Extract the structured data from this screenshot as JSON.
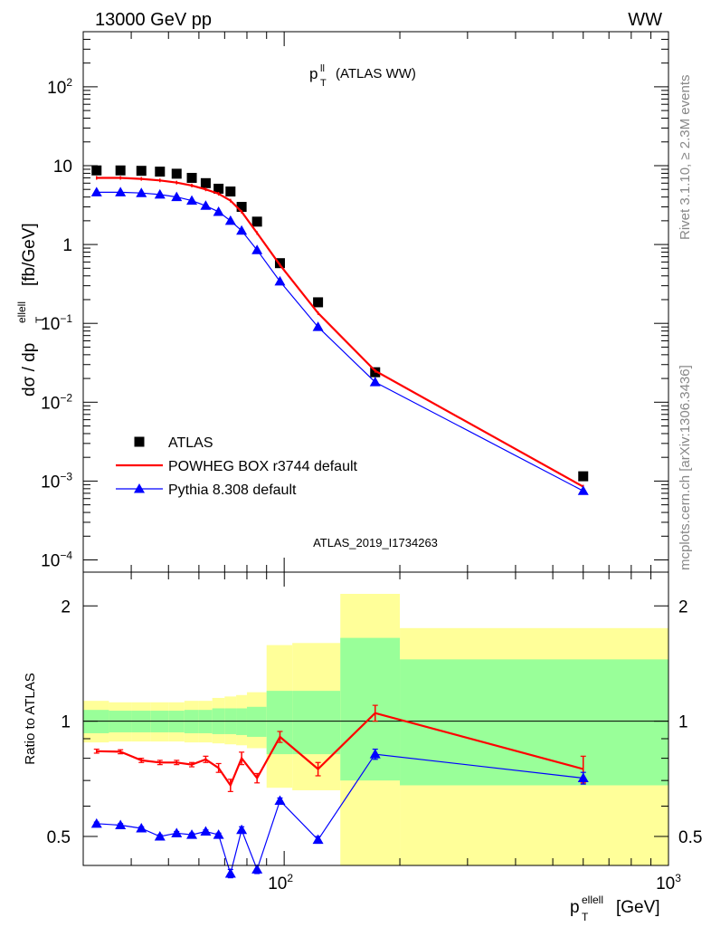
{
  "header": {
    "left": "13000 GeV pp",
    "right": "WW"
  },
  "side_labels": {
    "rivet": "Rivet 3.1.10, ≥ 2.3M events",
    "source": "mcplots.cern.ch [arXiv:1306.3436]"
  },
  "chart_data": [
    {
      "type": "scatter",
      "title": "p_T^ll (ATLAS WW)",
      "title_main": "p",
      "title_sub": "T",
      "title_sup": "ll",
      "title_rest": "(ATLAS WW)",
      "ylabel_main": "dσ / dp",
      "ylabel_sub": "T",
      "ylabel_sup": "ellell",
      "ylabel_rest": " [fb/GeV]",
      "xscale": "log",
      "yscale": "log",
      "xlim": [
        30,
        1000
      ],
      "ylim": [
        7e-05,
        500
      ],
      "yticks": [
        {
          "v": 0.0001,
          "b": "10",
          "e": "−4"
        },
        {
          "v": 0.001,
          "b": "10",
          "e": "−3"
        },
        {
          "v": 0.01,
          "b": "10",
          "e": "−2"
        },
        {
          "v": 0.1,
          "b": "10",
          "e": "−1"
        },
        {
          "v": 1,
          "b": "1",
          "e": ""
        },
        {
          "v": 10,
          "b": "10",
          "e": ""
        },
        {
          "v": 100,
          "b": "10",
          "e": "2"
        }
      ],
      "watermark": "ATLAS_2019_I1734263",
      "legend": [
        {
          "label": "ATLAS",
          "marker": "square",
          "color": "#000000"
        },
        {
          "label": "POWHEG BOX r3744 default",
          "marker": "line",
          "color": "#ff0000"
        },
        {
          "label": "Pythia 8.308 default",
          "marker": "triangle",
          "color": "#0000ff"
        }
      ],
      "series": [
        {
          "name": "ATLAS",
          "color": "#000000",
          "marker": "square",
          "x": [
            32.5,
            37.5,
            42.5,
            47.5,
            52.5,
            57.5,
            62.5,
            67.5,
            72.5,
            77.5,
            85,
            97.5,
            122.5,
            172.5,
            600
          ],
          "y": [
            8.7,
            8.7,
            8.6,
            8.4,
            7.9,
            7.0,
            6.0,
            5.1,
            4.7,
            3.0,
            1.95,
            0.58,
            0.185,
            0.024,
            0.00115
          ]
        },
        {
          "name": "POWHEG BOX r3744 default",
          "color": "#ff0000",
          "marker": "line",
          "x": [
            32.5,
            37.5,
            42.5,
            47.5,
            52.5,
            57.5,
            62.5,
            67.5,
            72.5,
            77.5,
            85,
            97.5,
            122.5,
            172.5,
            600
          ],
          "y": [
            7.0,
            7.0,
            6.8,
            6.5,
            6.1,
            5.6,
            5.0,
            4.4,
            3.6,
            2.6,
            1.4,
            0.55,
            0.135,
            0.025,
            0.00085
          ]
        },
        {
          "name": "Pythia 8.308 default",
          "color": "#0000ff",
          "marker": "triangle",
          "x": [
            32.5,
            37.5,
            42.5,
            47.5,
            52.5,
            57.5,
            62.5,
            67.5,
            72.5,
            77.5,
            85,
            97.5,
            122.5,
            172.5,
            600
          ],
          "y": [
            4.6,
            4.6,
            4.5,
            4.3,
            4.0,
            3.6,
            3.1,
            2.6,
            2.0,
            1.5,
            0.85,
            0.34,
            0.09,
            0.018,
            0.00075
          ]
        }
      ]
    },
    {
      "type": "scatter",
      "ylabel": "Ratio to ATLAS",
      "xlabel_main": "p",
      "xlabel_sub": "T",
      "xlabel_sup": "ellell",
      "xlabel_rest": " [GeV]",
      "xscale": "log",
      "yscale": "log",
      "xlim": [
        30,
        1000
      ],
      "ylim": [
        0.42,
        2.45
      ],
      "xticks": [
        {
          "v": 100,
          "b": "10",
          "e": "2"
        },
        {
          "v": 1000,
          "b": "10",
          "e": "3"
        }
      ],
      "yticks": [
        {
          "v": 0.5,
          "label": "0.5"
        },
        {
          "v": 1,
          "label": "1"
        },
        {
          "v": 2,
          "label": "2"
        }
      ],
      "uncertainty_bands": {
        "bins": [
          [
            30,
            35
          ],
          [
            35,
            40
          ],
          [
            40,
            45
          ],
          [
            45,
            50
          ],
          [
            50,
            55
          ],
          [
            55,
            60
          ],
          [
            60,
            65
          ],
          [
            65,
            70
          ],
          [
            70,
            75
          ],
          [
            75,
            80
          ],
          [
            80,
            90
          ],
          [
            90,
            105
          ],
          [
            105,
            140
          ],
          [
            140,
            200
          ],
          [
            200,
            1000
          ]
        ],
        "inner_color": "#99ff99",
        "outer_color": "#ffff99",
        "inner": [
          [
            0.93,
            1.07
          ],
          [
            0.935,
            1.065
          ],
          [
            0.935,
            1.065
          ],
          [
            0.935,
            1.065
          ],
          [
            0.935,
            1.065
          ],
          [
            0.93,
            1.07
          ],
          [
            0.93,
            1.07
          ],
          [
            0.925,
            1.08
          ],
          [
            0.925,
            1.08
          ],
          [
            0.92,
            1.08
          ],
          [
            0.91,
            1.09
          ],
          [
            0.82,
            1.2
          ],
          [
            0.82,
            1.2
          ],
          [
            0.7,
            1.65
          ],
          [
            0.68,
            1.45
          ]
        ],
        "outer": [
          [
            0.88,
            1.13
          ],
          [
            0.885,
            1.12
          ],
          [
            0.885,
            1.12
          ],
          [
            0.885,
            1.12
          ],
          [
            0.885,
            1.12
          ],
          [
            0.88,
            1.13
          ],
          [
            0.88,
            1.13
          ],
          [
            0.875,
            1.15
          ],
          [
            0.87,
            1.16
          ],
          [
            0.865,
            1.17
          ],
          [
            0.85,
            1.19
          ],
          [
            0.67,
            1.58
          ],
          [
            0.66,
            1.6
          ],
          [
            0.42,
            2.15
          ],
          [
            0.42,
            1.75
          ]
        ]
      },
      "series": [
        {
          "name": "POWHEG BOX r3744 default",
          "color": "#ff0000",
          "marker": "line",
          "x": [
            32.5,
            37.5,
            42.5,
            47.5,
            52.5,
            57.5,
            62.5,
            67.5,
            72.5,
            77.5,
            85,
            97.5,
            122.5,
            172.5,
            600
          ],
          "y": [
            0.835,
            0.832,
            0.79,
            0.78,
            0.78,
            0.77,
            0.795,
            0.755,
            0.68,
            0.8,
            0.71,
            0.91,
            0.75,
            1.05,
            0.75
          ],
          "err": [
            0.01,
            0.01,
            0.01,
            0.01,
            0.01,
            0.01,
            0.015,
            0.02,
            0.025,
            0.03,
            0.02,
            0.03,
            0.03,
            0.05,
            0.06
          ]
        },
        {
          "name": "Pythia 8.308 default",
          "color": "#0000ff",
          "marker": "triangle",
          "x": [
            32.5,
            37.5,
            42.5,
            47.5,
            52.5,
            57.5,
            62.5,
            67.5,
            72.5,
            77.5,
            85,
            97.5,
            122.5,
            172.5,
            600
          ],
          "y": [
            0.54,
            0.535,
            0.525,
            0.5,
            0.51,
            0.505,
            0.515,
            0.505,
            0.4,
            0.52,
            0.41,
            0.62,
            0.49,
            0.82,
            0.71
          ],
          "err": [
            0.005,
            0.005,
            0.005,
            0.005,
            0.005,
            0.005,
            0.005,
            0.005,
            0.01,
            0.01,
            0.01,
            0.01,
            0.01,
            0.025,
            0.025
          ]
        }
      ]
    }
  ]
}
